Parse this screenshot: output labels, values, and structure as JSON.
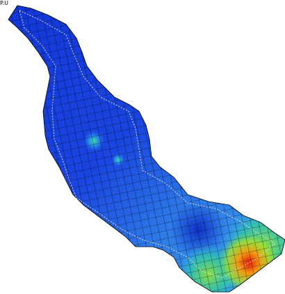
{
  "label": "P.U"
}
